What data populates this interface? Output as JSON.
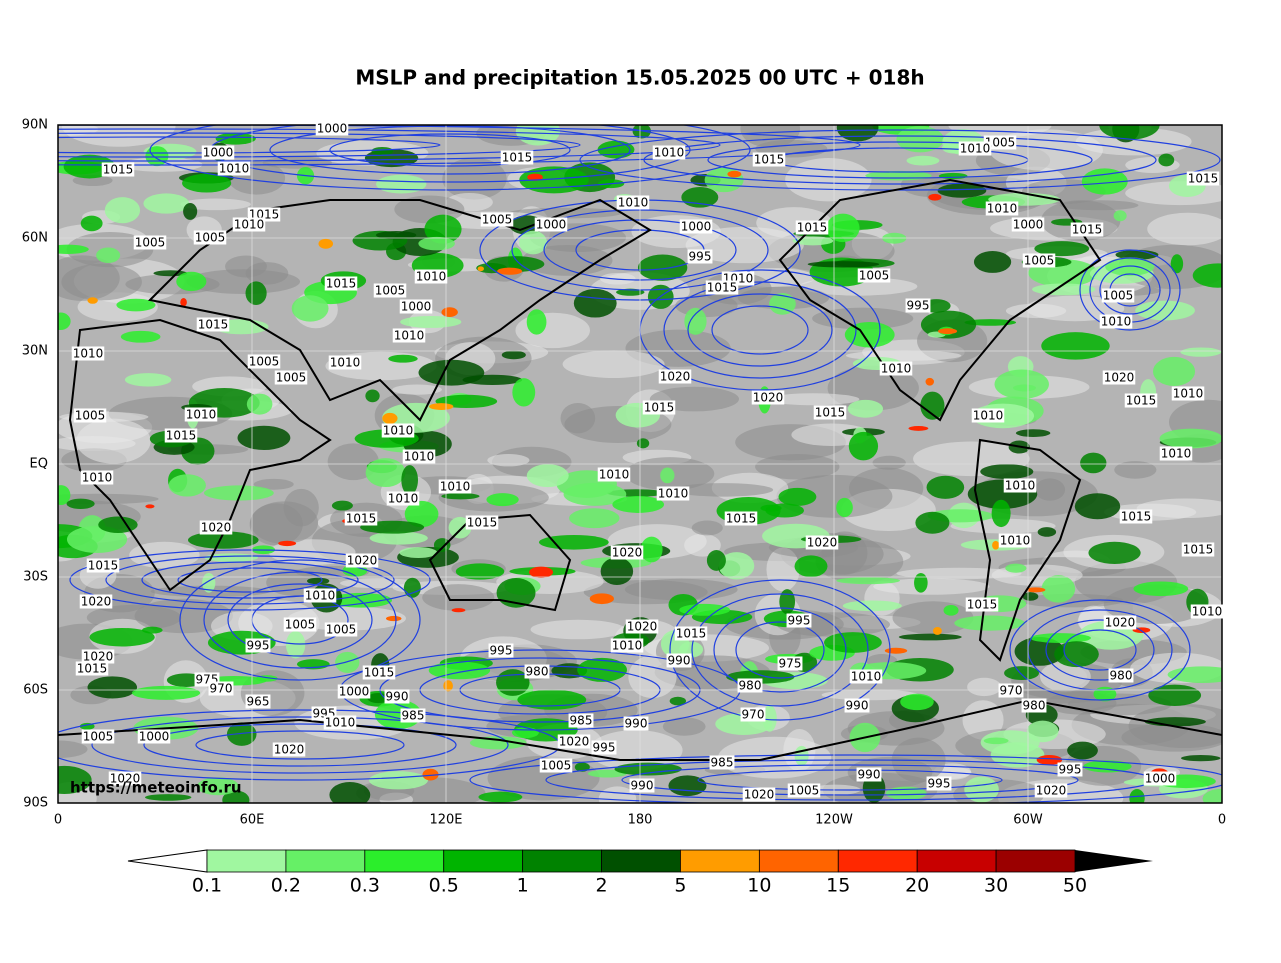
{
  "title": "MSLP and precipitation 15.05.2025 00 UTC + 018h",
  "lon_labels": [
    "0",
    "60E",
    "120E",
    "180",
    "120W",
    "60W",
    "0"
  ],
  "lat_labels": [
    "90N",
    "60N",
    "30N",
    "EQ",
    "30S",
    "60S",
    "90S"
  ],
  "watermark": "https://meteoinfo.ru",
  "colorbar": {
    "levels": [
      0.1,
      0.2,
      0.3,
      0.5,
      1,
      2,
      5,
      10,
      15,
      20,
      30,
      50
    ],
    "colors": [
      "#a0f7a0",
      "#66f066",
      "#2bee2b",
      "#00b400",
      "#008200",
      "#005000",
      "#ff9c00",
      "#ff6400",
      "#ff2800",
      "#c80000",
      "#9b0000"
    ]
  },
  "isobar_labels": [
    1000,
    1015,
    1010,
    1015,
    1005,
    1010,
    1015,
    1015,
    1010,
    1000,
    1015,
    1010,
    1005,
    1005,
    1005,
    1000,
    1010,
    1000,
    995,
    1010,
    1015,
    1015,
    1005,
    995,
    1010,
    1000,
    1015,
    1005,
    1005,
    1010,
    1015,
    1005,
    1000,
    1010,
    1010,
    1015,
    1005,
    1005,
    1010,
    1010,
    1020,
    1020,
    1015,
    1015,
    1010,
    1020,
    1015,
    1010,
    1010,
    1010,
    1005,
    1015,
    1010,
    1010,
    1010,
    1010,
    1010,
    1010,
    1010,
    1015,
    1010,
    1010,
    1015,
    1015,
    1020,
    1015,
    1010,
    1020,
    1020,
    1020,
    1015,
    1015,
    1020,
    1010,
    1005,
    1005,
    1015,
    1010,
    1020,
    1015,
    995,
    1020,
    995,
    995,
    980,
    990,
    1010,
    1020,
    1015,
    1015,
    975,
    970,
    980,
    975,
    1010,
    990,
    970,
    980,
    980,
    965,
    1000,
    990,
    995,
    1010,
    985,
    985,
    990,
    970,
    1005,
    1000,
    1020,
    1020,
    995,
    1005,
    985,
    990,
    995,
    995,
    1000,
    990,
    1020,
    1005,
    1020,
    1020
  ]
}
